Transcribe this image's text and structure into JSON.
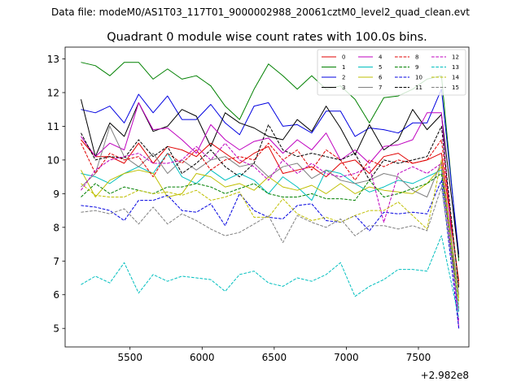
{
  "chart_data": {
    "type": "line",
    "suptitle": "Data file: modeM0/AS1T03_117T01_9000002988_20061cztM0_level2_quad_clean.evt",
    "title": "Quadrant 0 module wise count rates with 100.0s bins.",
    "xlabel": "",
    "ylabel": "",
    "x_offset_label": "+2.982e8",
    "xlim": [
      5050,
      7850
    ],
    "ylim": [
      4.45,
      13.35
    ],
    "xticks": [
      5500,
      6000,
      6500,
      7000,
      7500
    ],
    "yticks": [
      5,
      6,
      7,
      8,
      9,
      10,
      11,
      12,
      13
    ],
    "legend_location": "upper right",
    "x": [
      5160,
      5260,
      5360,
      5460,
      5560,
      5660,
      5760,
      5860,
      5960,
      6060,
      6160,
      6260,
      6360,
      6460,
      6560,
      6660,
      6760,
      6860,
      6960,
      7060,
      7160,
      7260,
      7360,
      7460,
      7560,
      7660,
      7780
    ],
    "series": [
      {
        "name": "0",
        "color": "#e00000",
        "dash": "solid",
        "values": [
          10.6,
          10.1,
          10.1,
          9.9,
          10.5,
          9.9,
          10.4,
          10.3,
          10.1,
          10.5,
          10.2,
          9.9,
          10.2,
          10.4,
          9.6,
          9.7,
          9.8,
          9.5,
          9.9,
          10.0,
          9.6,
          10.1,
          10.2,
          9.9,
          10.0,
          10.2,
          6.4
        ]
      },
      {
        "name": "1",
        "color": "#008000",
        "dash": "solid",
        "values": [
          12.9,
          12.8,
          12.5,
          12.9,
          12.9,
          12.4,
          12.7,
          12.4,
          12.5,
          12.2,
          11.6,
          11.2,
          12.1,
          12.85,
          12.5,
          12.1,
          12.5,
          12.1,
          12.2,
          11.8,
          11.1,
          11.85,
          11.9,
          12.1,
          12.4,
          12.5,
          7.0
        ]
      },
      {
        "name": "2",
        "color": "#0000e0",
        "dash": "solid",
        "values": [
          11.5,
          11.4,
          11.6,
          11.1,
          11.95,
          11.4,
          11.9,
          11.2,
          11.2,
          11.65,
          11.1,
          10.75,
          11.6,
          11.7,
          11.0,
          11.05,
          10.8,
          11.45,
          11.45,
          10.7,
          10.95,
          10.9,
          10.8,
          11.1,
          11.1,
          12.1,
          7.2
        ]
      },
      {
        "name": "3",
        "color": "#000000",
        "dash": "solid",
        "values": [
          11.8,
          10.1,
          11.1,
          10.7,
          11.7,
          10.85,
          11.0,
          11.5,
          11.3,
          10.4,
          11.4,
          11.1,
          10.95,
          10.7,
          10.6,
          11.2,
          10.85,
          11.6,
          10.95,
          10.15,
          11.05,
          10.3,
          10.6,
          11.5,
          10.9,
          11.35,
          7.1
        ]
      },
      {
        "name": "4",
        "color": "#bf00bf",
        "dash": "solid",
        "values": [
          10.7,
          10.1,
          10.5,
          10.3,
          11.7,
          10.9,
          10.95,
          10.6,
          10.2,
          11.05,
          10.6,
          10.3,
          10.55,
          10.65,
          10.2,
          10.6,
          10.3,
          10.8,
          10.0,
          10.3,
          9.9,
          10.4,
          10.45,
          10.6,
          11.4,
          11.4,
          5.0
        ]
      },
      {
        "name": "5",
        "color": "#00bfbf",
        "dash": "solid",
        "values": [
          9.6,
          9.5,
          9.3,
          9.6,
          9.8,
          9.6,
          10.2,
          9.5,
          9.3,
          9.7,
          9.4,
          9.6,
          9.4,
          9.0,
          9.5,
          9.2,
          8.8,
          9.7,
          9.6,
          9.3,
          9.05,
          9.2,
          9.4,
          9.3,
          9.5,
          9.7,
          5.5
        ]
      },
      {
        "name": "6",
        "color": "#bfbf00",
        "dash": "solid",
        "values": [
          9.7,
          8.9,
          9.4,
          9.6,
          9.7,
          9.6,
          8.9,
          9.0,
          9.6,
          9.5,
          9.2,
          9.3,
          9.1,
          9.5,
          9.2,
          9.1,
          9.25,
          9.0,
          9.3,
          9.0,
          9.2,
          9.1,
          9.05,
          9.0,
          9.3,
          9.8,
          5.9
        ]
      },
      {
        "name": "7",
        "color": "#808080",
        "dash": "solid",
        "values": [
          9.2,
          9.6,
          11.0,
          10.1,
          9.8,
          10.2,
          9.6,
          10.0,
          9.7,
          10.0,
          10.1,
          9.8,
          9.9,
          9.5,
          9.8,
          9.9,
          9.45,
          9.7,
          9.4,
          9.3,
          9.4,
          9.6,
          9.5,
          9.1,
          8.9,
          9.95,
          6.0
        ]
      },
      {
        "name": "8",
        "color": "#e00000",
        "dash": "dashed",
        "values": [
          10.5,
          9.6,
          10.2,
          10.0,
          10.1,
          9.5,
          10.2,
          9.9,
          10.3,
          9.7,
          10.0,
          10.1,
          10.0,
          10.5,
          10.0,
          10.3,
          9.7,
          10.3,
          10.0,
          9.4,
          10.0,
          9.8,
          10.0,
          9.9,
          10.0,
          10.6,
          6.3
        ]
      },
      {
        "name": "9",
        "color": "#008000",
        "dash": "dashed",
        "values": [
          8.9,
          9.3,
          9.0,
          9.2,
          9.1,
          9.0,
          9.2,
          9.2,
          9.3,
          9.2,
          9.0,
          9.15,
          9.3,
          9.0,
          8.9,
          8.9,
          9.0,
          8.85,
          8.85,
          8.8,
          9.4,
          8.9,
          9.0,
          9.15,
          9.3,
          9.6,
          5.6
        ]
      },
      {
        "name": "10",
        "color": "#0000e0",
        "dash": "dashed",
        "values": [
          8.65,
          8.6,
          8.5,
          8.2,
          8.8,
          8.8,
          8.95,
          8.5,
          8.45,
          8.7,
          8.05,
          9.0,
          8.5,
          8.3,
          8.25,
          8.65,
          8.7,
          8.2,
          8.15,
          8.35,
          7.9,
          8.45,
          8.4,
          8.45,
          8.4,
          9.4,
          5.0
        ]
      },
      {
        "name": "11",
        "color": "#000000",
        "dash": "dashed",
        "values": [
          10.8,
          10.0,
          10.1,
          10.05,
          10.6,
          10.1,
          10.4,
          9.6,
          9.9,
          10.3,
          9.8,
          9.5,
          9.9,
          11.05,
          10.3,
          10.1,
          10.2,
          10.1,
          10.0,
          10.2,
          9.4,
          10.0,
          9.9,
          10.0,
          10.1,
          11.0,
          6.2
        ]
      },
      {
        "name": "12",
        "color": "#bf00bf",
        "dash": "dashed",
        "values": [
          9.1,
          9.7,
          10.0,
          10.1,
          10.2,
          9.9,
          9.9,
          10.0,
          10.4,
          10.0,
          10.5,
          10.0,
          9.8,
          9.4,
          10.0,
          9.6,
          9.9,
          9.6,
          9.5,
          9.6,
          9.8,
          8.15,
          9.6,
          9.8,
          9.6,
          9.9,
          5.2
        ]
      },
      {
        "name": "13",
        "color": "#00bfbf",
        "dash": "dashed",
        "values": [
          6.3,
          6.55,
          6.35,
          6.95,
          6.05,
          6.6,
          6.4,
          6.55,
          6.5,
          6.45,
          6.1,
          6.6,
          6.7,
          6.35,
          6.25,
          6.5,
          6.4,
          6.6,
          6.95,
          5.95,
          6.25,
          6.45,
          6.75,
          6.75,
          6.7,
          7.75,
          5.3
        ]
      },
      {
        "name": "14",
        "color": "#bfbf00",
        "dash": "dashed",
        "values": [
          9.3,
          8.95,
          8.9,
          8.9,
          9.1,
          9.0,
          9.05,
          8.95,
          9.1,
          8.8,
          8.9,
          9.05,
          8.3,
          8.3,
          8.85,
          8.4,
          8.2,
          8.3,
          8.15,
          8.35,
          8.5,
          8.5,
          8.75,
          8.35,
          7.95,
          10.0,
          5.8
        ]
      },
      {
        "name": "15",
        "color": "#808080",
        "dash": "dashed",
        "values": [
          8.45,
          8.5,
          8.4,
          8.55,
          8.1,
          8.6,
          8.1,
          8.4,
          8.2,
          7.95,
          7.75,
          7.85,
          8.1,
          8.35,
          7.55,
          8.35,
          8.15,
          8.0,
          8.25,
          7.75,
          8.05,
          8.05,
          7.95,
          8.05,
          7.9,
          9.2,
          5.6
        ]
      }
    ]
  }
}
